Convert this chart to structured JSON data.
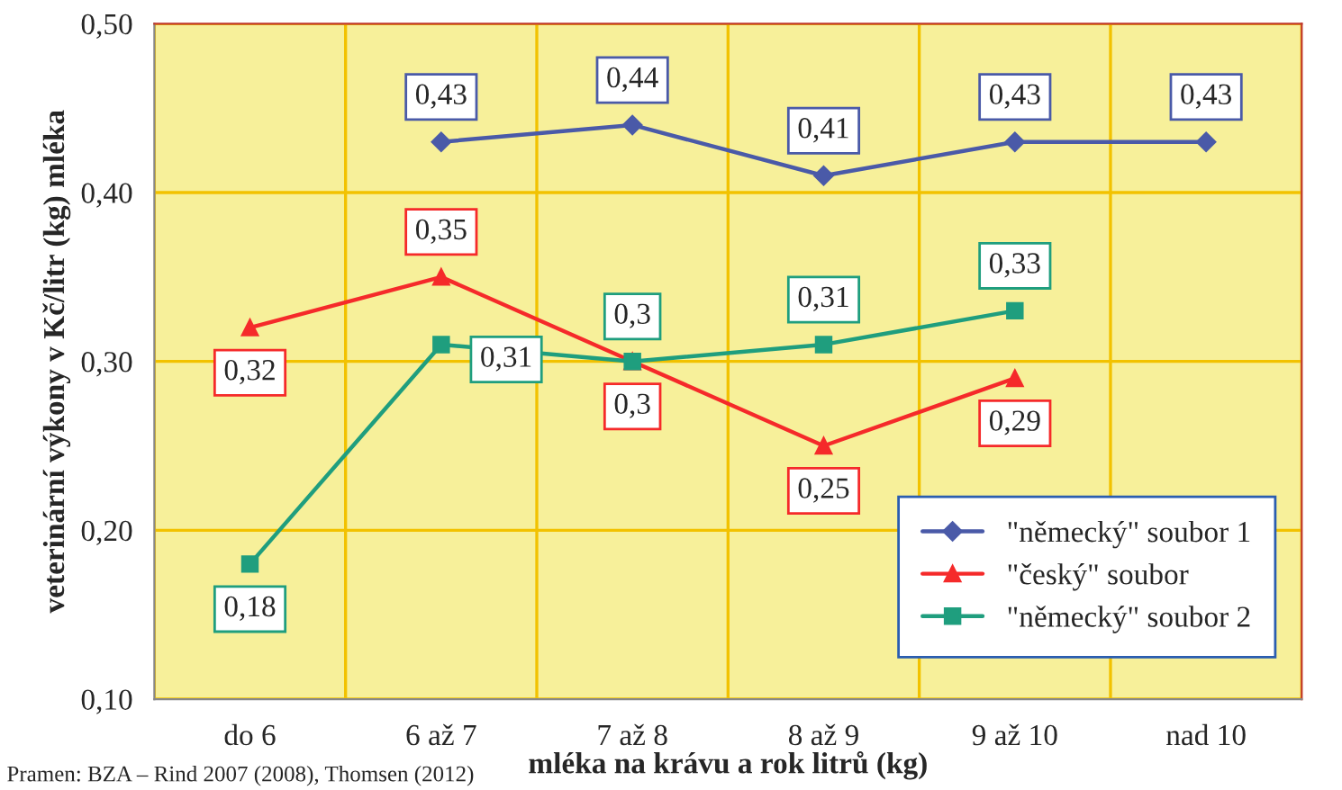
{
  "chart_data": {
    "type": "line",
    "xlabel": "mléka na krávu a rok litrů (kg)",
    "ylabel": "veterinární výkony v Kč/litr (kg) mléka",
    "categories": [
      "do 6",
      "6 až 7",
      "7 až 8",
      "8 až 9",
      "9 až 10",
      "nad 10"
    ],
    "series": [
      {
        "name": "\"německý\" soubor 1",
        "color": "#4a5aa8",
        "marker": "diamond",
        "values": [
          null,
          0.43,
          0.44,
          0.41,
          0.43,
          0.43
        ],
        "value_labels": [
          null,
          "0,43",
          "0,44",
          "0,41",
          "0,43",
          "0,43"
        ]
      },
      {
        "name": "\"český\" soubor",
        "color": "#f52a2a",
        "marker": "triangle",
        "values": [
          0.32,
          0.35,
          0.3,
          0.25,
          0.29,
          null
        ],
        "value_labels": [
          "0,32",
          "0,35",
          "0,3",
          "0,25",
          "0,29",
          null
        ]
      },
      {
        "name": "\"německý\" soubor 2",
        "color": "#1f9e7e",
        "marker": "square",
        "values": [
          0.18,
          0.31,
          0.3,
          0.31,
          0.33,
          null
        ],
        "value_labels": [
          "0,18",
          "0,31",
          "0,3",
          "0,31",
          "0,33",
          null
        ]
      }
    ],
    "ylim": [
      0.1,
      0.5
    ],
    "yticks": [
      {
        "value": 0.1,
        "label": "0,10"
      },
      {
        "value": 0.2,
        "label": "0,20"
      },
      {
        "value": 0.3,
        "label": "0,30"
      },
      {
        "value": 0.4,
        "label": "0,40"
      },
      {
        "value": 0.5,
        "label": "0,50"
      }
    ],
    "grid": true,
    "legend": "bottom right",
    "annotations": [
      "Pramen: BZA – Rind 2007 (2008), Thomsen (2012)"
    ]
  }
}
